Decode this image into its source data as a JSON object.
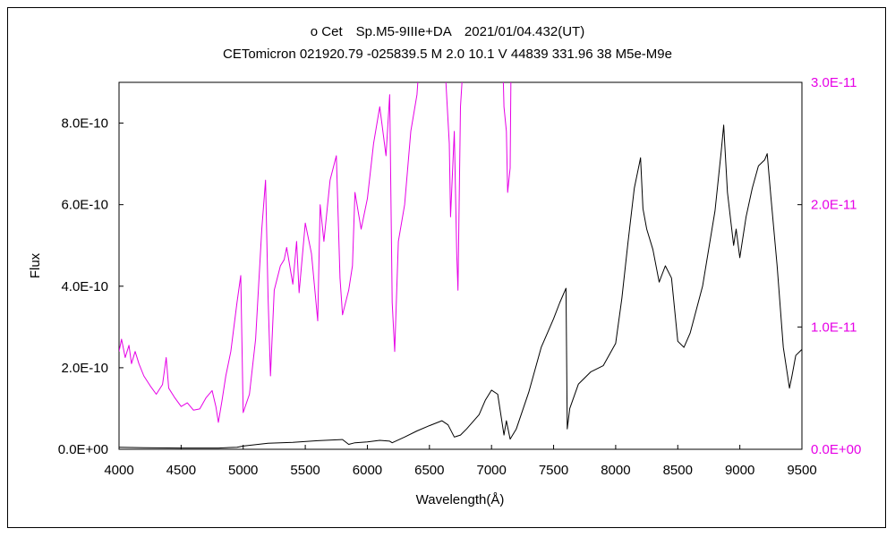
{
  "chart_data": {
    "type": "line",
    "title_line1": "ο Cet　Sp.M5-9IIIe+DA　2021/01/04.432(UT)",
    "title_line2": "CETomicron 021920.79 -025839.5 M 2.0 10.1 V 44839 331.96 38 M5e-M9e",
    "xlabel": "Wavelength(Å)",
    "ylabel": "Flux",
    "xlim": [
      4000,
      9500
    ],
    "ylim": [
      0,
      9e-10
    ],
    "y2lim": [
      0,
      3e-11
    ],
    "x_ticks": [
      "4000",
      "4500",
      "5000",
      "5500",
      "6000",
      "6500",
      "7000",
      "7500",
      "8000",
      "8500",
      "9000",
      "9500"
    ],
    "y_ticks": [
      "0.0E+00",
      "2.0E-10",
      "4.0E-10",
      "6.0E-10",
      "8.0E-10"
    ],
    "y2_ticks": [
      "0.0E+00",
      "1.0E-11",
      "2.0E-11",
      "3.0E-11"
    ],
    "grid": false,
    "colors": {
      "primary": "#000000",
      "secondary": "#e600e6"
    },
    "series": [
      {
        "axis": "left",
        "color": "#000000",
        "x": [
          4000,
          4200,
          4500,
          4800,
          4950,
          5000,
          5200,
          5400,
          5600,
          5800,
          5850,
          5900,
          6000,
          6100,
          6180,
          6200,
          6300,
          6400,
          6500,
          6600,
          6650,
          6700,
          6750,
          6800,
          6900,
          6950,
          7000,
          7050,
          7100,
          7120,
          7150,
          7200,
          7300,
          7400,
          7450,
          7500,
          7550,
          7600,
          7610,
          7630,
          7700,
          7800,
          7900,
          8000,
          8050,
          8100,
          8150,
          8200,
          8220,
          8250,
          8300,
          8350,
          8400,
          8450,
          8500,
          8550,
          8600,
          8700,
          8800,
          8850,
          8870,
          8900,
          8950,
          8970,
          9000,
          9050,
          9100,
          9150,
          9200,
          9220,
          9250,
          9300,
          9350,
          9400,
          9420,
          9450,
          9500
        ],
        "y": [
          5e-12,
          4e-12,
          3e-12,
          3e-12,
          5e-12,
          8e-12,
          1.5e-11,
          1.7e-11,
          2.1e-11,
          2.4e-11,
          1.2e-11,
          1.6e-11,
          1.8e-11,
          2.2e-11,
          2e-11,
          1.6e-11,
          3e-11,
          4.5e-11,
          5.8e-11,
          7e-11,
          6e-11,
          3e-11,
          3.5e-11,
          5e-11,
          8.5e-11,
          1.2e-10,
          1.45e-10,
          1.35e-10,
          3.5e-11,
          7e-11,
          2.5e-11,
          5e-11,
          1.4e-10,
          2.5e-10,
          2.85e-10,
          3.2e-10,
          3.6e-10,
          3.95e-10,
          5e-11,
          1e-10,
          1.6e-10,
          1.9e-10,
          2.05e-10,
          2.6e-10,
          3.7e-10,
          5.1e-10,
          6.4e-10,
          7.15e-10,
          5.9e-10,
          5.4e-10,
          4.9e-10,
          4.1e-10,
          4.5e-10,
          4.2e-10,
          2.65e-10,
          2.5e-10,
          2.85e-10,
          4e-10,
          5.85e-10,
          7.3e-10,
          7.95e-10,
          6.3e-10,
          5e-10,
          5.4e-10,
          4.7e-10,
          5.7e-10,
          6.4e-10,
          6.95e-10,
          7.1e-10,
          7.25e-10,
          6.2e-10,
          4.5e-10,
          2.5e-10,
          1.5e-10,
          1.8e-10,
          2.3e-10,
          2.45e-10
        ]
      },
      {
        "axis": "right",
        "color": "#e600e6",
        "x": [
          4000,
          4020,
          4050,
          4080,
          4100,
          4130,
          4160,
          4200,
          4250,
          4300,
          4350,
          4380,
          4400,
          4450,
          4500,
          4550,
          4600,
          4650,
          4700,
          4750,
          4780,
          4800,
          4830,
          4860,
          4900,
          4950,
          4980,
          5000,
          5050,
          5100,
          5150,
          5180,
          5200,
          5220,
          5250,
          5300,
          5330,
          5350,
          5400,
          5430,
          5450,
          5500,
          5550,
          5600,
          5620,
          5650,
          5700,
          5750,
          5780,
          5800,
          5850,
          5880,
          5900,
          5950,
          6000,
          6050,
          6100,
          6150,
          6180,
          6200,
          6220,
          6250,
          6300,
          6350,
          6400,
          6420,
          6450,
          6600,
          6660,
          6670,
          6700,
          6720,
          6730,
          6750,
          6780,
          6800,
          7080,
          7100,
          7120,
          7130,
          7150,
          7160
        ],
        "y": [
          8e-12,
          9e-12,
          7.5e-12,
          8.5e-12,
          7e-12,
          8e-12,
          7e-12,
          6e-12,
          5.2e-12,
          4.5e-12,
          5.3e-12,
          7.5e-12,
          5e-12,
          4.2e-12,
          3.5e-12,
          3.8e-12,
          3.2e-12,
          3.3e-12,
          4.2e-12,
          4.8e-12,
          3.5e-12,
          2.2e-12,
          4e-12,
          6e-12,
          8e-12,
          1.2e-11,
          1.42e-11,
          3e-12,
          4.5e-12,
          9e-12,
          1.8e-11,
          2.2e-11,
          1.25e-11,
          6e-12,
          1.3e-11,
          1.5e-11,
          1.55e-11,
          1.65e-11,
          1.35e-11,
          1.7e-11,
          1.28e-11,
          1.85e-11,
          1.6e-11,
          1.05e-11,
          2e-11,
          1.7e-11,
          2.2e-11,
          2.4e-11,
          1.4e-11,
          1.1e-11,
          1.3e-11,
          1.5e-11,
          2.1e-11,
          1.8e-11,
          2.05e-11,
          2.5e-11,
          2.8e-11,
          2.4e-11,
          2.9e-11,
          1.2e-11,
          8e-12,
          1.7e-11,
          2e-11,
          2.6e-11,
          2.9e-11,
          3.2e-11,
          3.5e-11,
          3.6e-11,
          2.5e-11,
          1.9e-11,
          2.6e-11,
          1.6e-11,
          1.3e-11,
          2.8e-11,
          3.3e-11,
          3.6e-11,
          3.6e-11,
          2.8e-11,
          2.6e-11,
          2.1e-11,
          2.3e-11,
          3.5e-11
        ]
      }
    ]
  }
}
